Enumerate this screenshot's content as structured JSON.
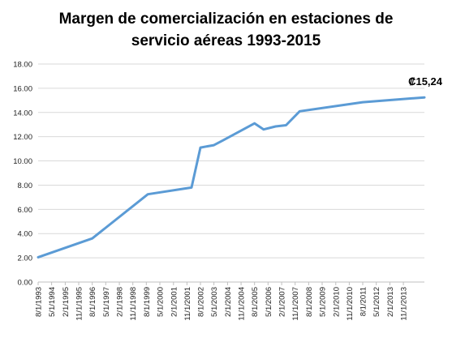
{
  "chart_data": {
    "type": "line",
    "title_line1": "Margen de comercialización en estaciones de",
    "title_line2": "servicio aéreas 1993-2015",
    "ylim": [
      0,
      18
    ],
    "ytick_labels": [
      "0.00",
      "2.00",
      "4.00",
      "6.00",
      "8.00",
      "10.00",
      "12.00",
      "14.00",
      "16.00",
      "18.00"
    ],
    "grid": true,
    "series_color": "#5B9BD5",
    "x_labels": [
      "8/1/1993",
      "5/1/1994",
      "2/1/1995",
      "11/1/1995",
      "8/1/1996",
      "5/1/1997",
      "2/1/1998",
      "11/1/1998",
      "8/1/1999",
      "5/1/2000",
      "2/1/2001",
      "11/1/2001",
      "8/1/2002",
      "5/1/2003",
      "2/1/2004",
      "11/1/2004",
      "8/1/2005",
      "5/1/2006",
      "2/1/2007",
      "11/1/2007",
      "8/1/2008",
      "5/1/2009",
      "2/1/2010",
      "11/1/2010",
      "8/1/2011",
      "5/1/2012",
      "2/1/2013",
      "11/1/2013"
    ],
    "points": [
      {
        "x": "1993-08-01",
        "y": 2.05
      },
      {
        "x": "1996-08-01",
        "y": 3.6
      },
      {
        "x": "1999-09-01",
        "y": 7.25
      },
      {
        "x": "2002-02-01",
        "y": 7.8
      },
      {
        "x": "2002-08-01",
        "y": 11.1
      },
      {
        "x": "2003-05-01",
        "y": 11.3
      },
      {
        "x": "2003-11-01",
        "y": 11.7
      },
      {
        "x": "2005-08-01",
        "y": 13.1
      },
      {
        "x": "2006-02-01",
        "y": 12.6
      },
      {
        "x": "2006-10-01",
        "y": 12.85
      },
      {
        "x": "2007-05-01",
        "y": 12.95
      },
      {
        "x": "2008-02-01",
        "y": 14.1
      },
      {
        "x": "2011-08-01",
        "y": 14.85
      },
      {
        "x": "2015-01-01",
        "y": 15.24
      }
    ],
    "annotation": "₡15,24"
  }
}
